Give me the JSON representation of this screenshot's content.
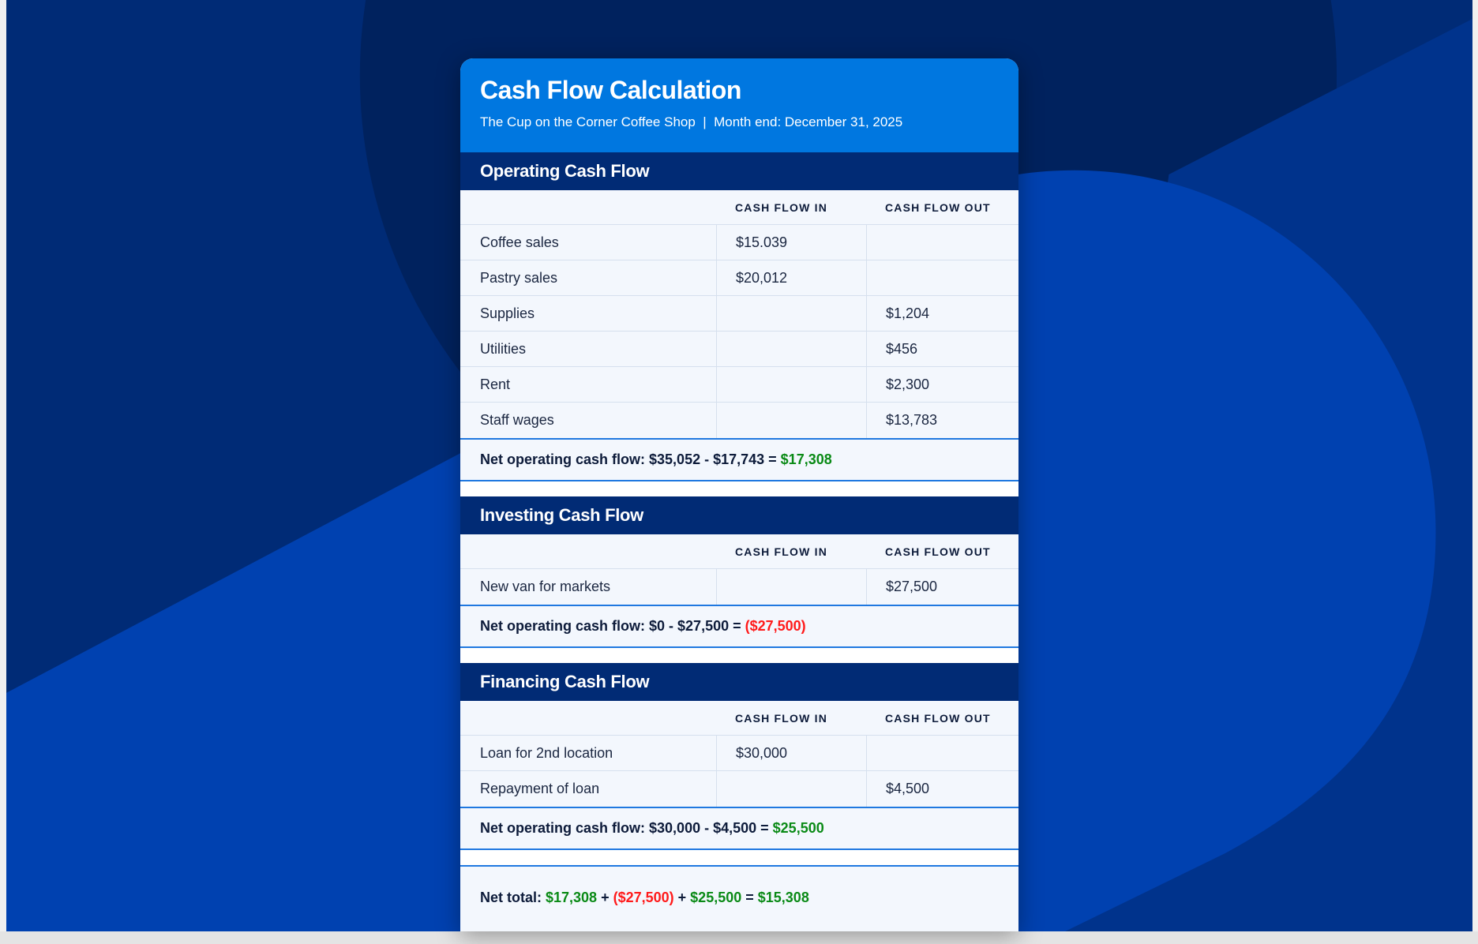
{
  "colors": {
    "header_blue": "#0077e0",
    "section_navy": "#012b75",
    "positive": "#0a8a16",
    "negative": "#ff1a1a",
    "text": "#0d1b3a"
  },
  "header": {
    "title": "Cash Flow Calculation",
    "subtitle": "The Cup on the Corner Coffee Shop  |  Month end: December 31, 2025"
  },
  "sections": [
    {
      "title": "Operating Cash Flow",
      "columns": [
        "",
        "CASH FLOW IN",
        "CASH FLOW OUT"
      ],
      "rows": [
        [
          "Coffee sales",
          "$15.039",
          ""
        ],
        [
          "Pastry sales",
          "$20,012",
          ""
        ],
        [
          "Supplies",
          "",
          "$1,204"
        ],
        [
          "Utilities",
          "",
          "$456"
        ],
        [
          "Rent",
          "",
          "$2,300"
        ],
        [
          "Staff wages",
          "",
          "$13,783"
        ]
      ],
      "net": [
        {
          "text": "Net operating cash flow: $35,052 - $17,743 = ",
          "tone": "text"
        },
        {
          "text": "$17,308",
          "tone": "positive"
        }
      ]
    },
    {
      "title": "Investing Cash Flow",
      "columns": [
        "",
        "CASH FLOW IN",
        "CASH FLOW OUT"
      ],
      "rows": [
        [
          "New van for markets",
          "",
          "$27,500"
        ]
      ],
      "net": [
        {
          "text": "Net operating cash flow: $0 - $27,500 = ",
          "tone": "text"
        },
        {
          "text": "($27,500)",
          "tone": "negative"
        }
      ]
    },
    {
      "title": "Financing Cash Flow",
      "columns": [
        "",
        "CASH FLOW IN",
        "CASH FLOW OUT"
      ],
      "rows": [
        [
          "Loan for 2nd location",
          "$30,000",
          ""
        ],
        [
          "Repayment of loan",
          "",
          "$4,500"
        ]
      ],
      "net": [
        {
          "text": "Net operating cash flow: $30,000 - $4,500 = ",
          "tone": "text"
        },
        {
          "text": "$25,500",
          "tone": "positive"
        }
      ]
    }
  ],
  "total": [
    {
      "text": "Net total: ",
      "tone": "text"
    },
    {
      "text": "$17,308",
      "tone": "positive"
    },
    {
      "text": " + ",
      "tone": "text"
    },
    {
      "text": "($27,500)",
      "tone": "negative"
    },
    {
      "text": " + ",
      "tone": "text"
    },
    {
      "text": "$25,500",
      "tone": "positive"
    },
    {
      "text": " = ",
      "tone": "text"
    },
    {
      "text": "$15,308",
      "tone": "positive"
    }
  ]
}
